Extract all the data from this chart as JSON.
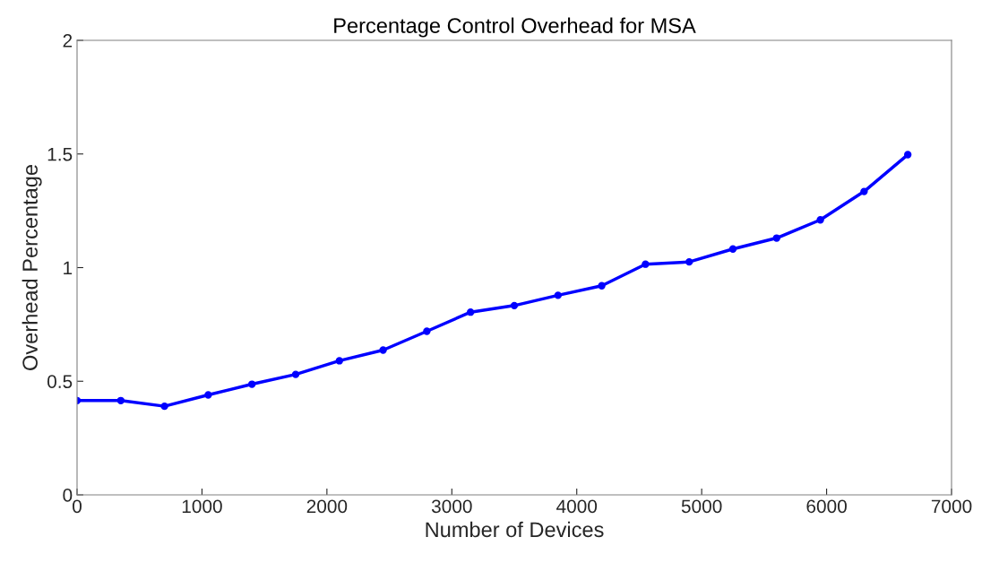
{
  "chart_data": {
    "type": "line",
    "title": "Percentage Control Overhead for MSA",
    "xlabel": "Number of Devices",
    "ylabel": "Overhead Percentage",
    "x": [
      0,
      350,
      700,
      1050,
      1400,
      1750,
      2100,
      2450,
      2800,
      3150,
      3500,
      3850,
      4200,
      4550,
      4900,
      5250,
      5600,
      5950,
      6300,
      6650
    ],
    "series": [
      {
        "color": "#0000ff",
        "values": [
          0.415,
          0.415,
          0.39,
          0.44,
          0.487,
          0.53,
          0.59,
          0.637,
          0.72,
          0.804,
          0.833,
          0.878,
          0.92,
          1.015,
          1.025,
          1.082,
          1.13,
          1.21,
          1.335,
          1.497
        ]
      }
    ],
    "xlim": [
      0,
      7000
    ],
    "xticks": [
      0,
      1000,
      2000,
      3000,
      4000,
      5000,
      6000,
      7000
    ],
    "ylim": [
      0,
      2
    ],
    "yticks": [
      0,
      0.5,
      1,
      1.5,
      2
    ],
    "grid": false,
    "legend": false,
    "marker": "circle",
    "line_style": "solid"
  }
}
